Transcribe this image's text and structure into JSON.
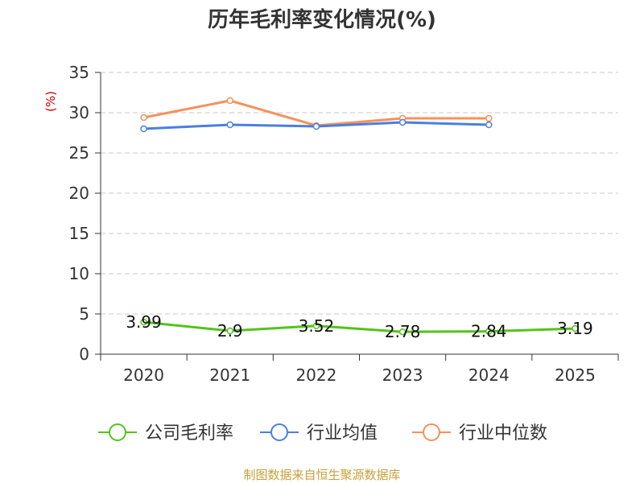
{
  "chart_data": {
    "type": "line",
    "title": "历年毛利率变化情况(%)",
    "unit_label": "(%)",
    "categories": [
      "2020",
      "2021",
      "2022",
      "2023",
      "2024",
      "2025"
    ],
    "ylim": [
      0,
      35
    ],
    "yticks": [
      "0",
      "5",
      "10",
      "15",
      "20",
      "25",
      "30",
      "35"
    ],
    "grid": true,
    "legend_position": "bottom",
    "series": [
      {
        "name": "公司毛利率",
        "color": "#52c41a",
        "values": [
          3.99,
          2.9,
          3.52,
          2.78,
          2.84,
          3.19
        ],
        "labels": [
          "3.99",
          "2.9",
          "3.52",
          "2.78",
          "2.84",
          "3.19"
        ]
      },
      {
        "name": "行业均值",
        "color": "#4a7fe0",
        "values": [
          28.0,
          28.5,
          28.3,
          28.8,
          28.5,
          null
        ]
      },
      {
        "name": "行业中位数",
        "color": "#f7905a",
        "values": [
          29.4,
          31.5,
          28.4,
          29.3,
          29.3,
          null
        ]
      }
    ],
    "source": "制图数据来自恒生聚源数据库"
  }
}
